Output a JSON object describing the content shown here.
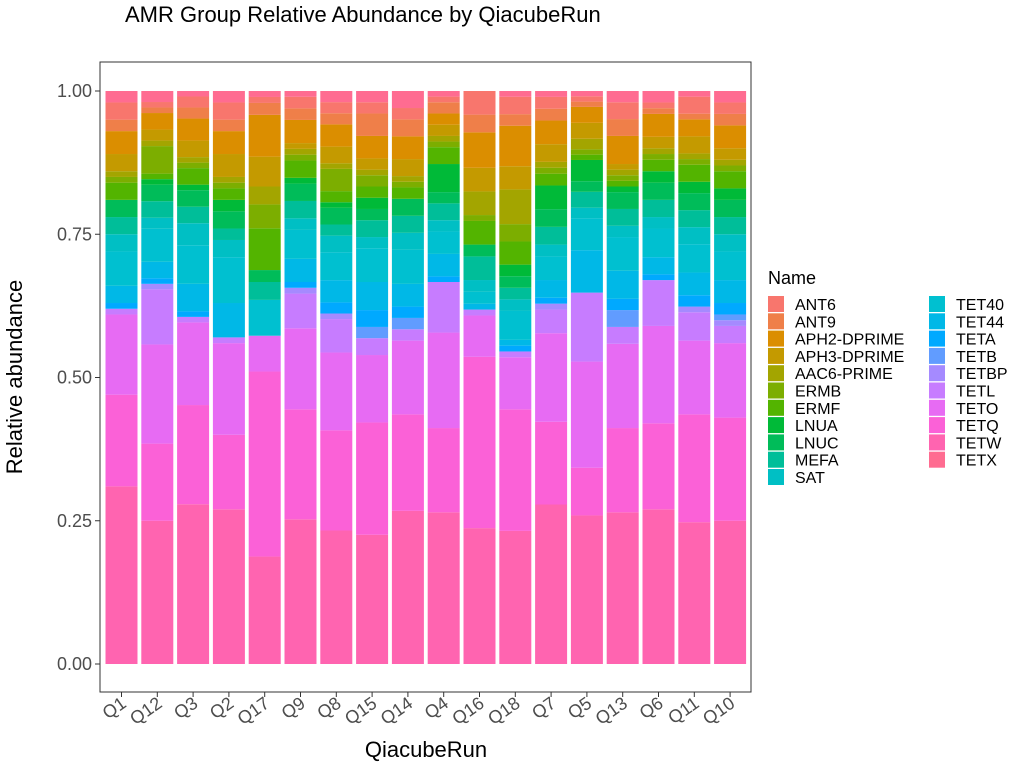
{
  "chart_data": {
    "type": "bar",
    "stacked": true,
    "normalized": true,
    "title": "AMR Group Relative Abundance by QiacubeRun",
    "xlabel": "QiacubeRun",
    "ylabel": "Relative abundance",
    "ylim": [
      0,
      1
    ],
    "yticks": [
      "0.00",
      "0.25",
      "0.50",
      "0.75",
      "1.00"
    ],
    "categories": [
      "Q1",
      "Q12",
      "Q3",
      "Q2",
      "Q17",
      "Q9",
      "Q8",
      "Q15",
      "Q14",
      "Q4",
      "Q16",
      "Q18",
      "Q7",
      "Q5",
      "Q13",
      "Q6",
      "Q11",
      "Q10"
    ],
    "legend_title": "Name",
    "legend_position": "right",
    "grid": false,
    "series": [
      {
        "name": "TETW",
        "color": "#FF64B0",
        "values": [
          0.31,
          0.26,
          0.29,
          0.27,
          0.18,
          0.25,
          0.24,
          0.23,
          0.27,
          0.27,
          0.23,
          0.23,
          0.27,
          0.28,
          0.27,
          0.27,
          0.25,
          0.25
        ]
      },
      {
        "name": "TETQ",
        "color": "#FB61D7",
        "values": [
          0.16,
          0.14,
          0.18,
          0.13,
          0.31,
          0.19,
          0.18,
          0.2,
          0.17,
          0.15,
          0.29,
          0.21,
          0.14,
          0.09,
          0.15,
          0.15,
          0.19,
          0.18
        ]
      },
      {
        "name": "TETO",
        "color": "#E76BF3",
        "values": [
          0.14,
          0.18,
          0.15,
          0.16,
          0.06,
          0.14,
          0.14,
          0.12,
          0.13,
          0.17,
          0.07,
          0.09,
          0.15,
          0.2,
          0.15,
          0.17,
          0.13,
          0.13
        ]
      },
      {
        "name": "TETL",
        "color": "#C77CFF",
        "values": [
          0.01,
          0.1,
          0.01,
          0.01,
          0.0,
          0.06,
          0.06,
          0.03,
          0.02,
          0.09,
          0.01,
          0.01,
          0.04,
          0.13,
          0.03,
          0.08,
          0.05,
          0.03
        ]
      },
      {
        "name": "TETBP",
        "color": "#A58AFF",
        "values": [
          0.0,
          0.01,
          0.0,
          0.0,
          0.0,
          0.01,
          0.01,
          0.0,
          0.0,
          0.0,
          0.0,
          0.0,
          0.01,
          0.0,
          0.0,
          0.0,
          0.01,
          0.01
        ]
      },
      {
        "name": "TETB",
        "color": "#619CFF",
        "values": [
          0.0,
          0.0,
          0.0,
          0.0,
          0.0,
          0.0,
          0.0,
          0.02,
          0.02,
          0.0,
          0.0,
          0.0,
          0.0,
          0.0,
          0.03,
          0.0,
          0.0,
          0.01
        ]
      },
      {
        "name": "TETA",
        "color": "#00A9FF",
        "values": [
          0.01,
          0.01,
          0.01,
          0.0,
          0.0,
          0.01,
          0.02,
          0.03,
          0.02,
          0.01,
          0.0,
          0.01,
          0.01,
          0.0,
          0.02,
          0.01,
          0.02,
          0.02
        ]
      },
      {
        "name": "TET44",
        "color": "#00B8E7",
        "values": [
          0.03,
          0.03,
          0.05,
          0.06,
          0.0,
          0.04,
          0.04,
          0.05,
          0.04,
          0.04,
          0.01,
          0.01,
          0.03,
          0.08,
          0.05,
          0.03,
          0.04,
          0.04
        ]
      },
      {
        "name": "TET40",
        "color": "#00C0D0",
        "values": [
          0.06,
          0.06,
          0.07,
          0.08,
          0.06,
          0.05,
          0.05,
          0.06,
          0.06,
          0.04,
          0.02,
          0.05,
          0.04,
          0.06,
          0.06,
          0.05,
          0.05,
          0.05
        ]
      },
      {
        "name": "SAT",
        "color": "#00BFC4",
        "values": [
          0.03,
          0.02,
          0.04,
          0.03,
          0.0,
          0.02,
          0.03,
          0.02,
          0.03,
          0.02,
          0.02,
          0.02,
          0.02,
          0.02,
          0.02,
          0.02,
          0.03,
          0.03
        ]
      },
      {
        "name": "MEFA",
        "color": "#00BE99",
        "values": [
          0.03,
          0.03,
          0.03,
          0.02,
          0.03,
          0.03,
          0.02,
          0.03,
          0.03,
          0.03,
          0.04,
          0.02,
          0.03,
          0.03,
          0.03,
          0.03,
          0.03,
          0.03
        ]
      },
      {
        "name": "LNUC",
        "color": "#00BC59",
        "values": [
          0.03,
          0.03,
          0.03,
          0.03,
          0.02,
          0.03,
          0.03,
          0.02,
          0.03,
          0.02,
          0.02,
          0.02,
          0.03,
          0.02,
          0.03,
          0.03,
          0.03,
          0.03
        ]
      },
      {
        "name": "LNUA",
        "color": "#00BA38",
        "values": [
          0.0,
          0.01,
          0.01,
          0.02,
          0.0,
          0.01,
          0.01,
          0.02,
          0.0,
          0.05,
          0.0,
          0.02,
          0.04,
          0.04,
          0.01,
          0.02,
          0.02,
          0.02
        ]
      },
      {
        "name": "ERMF",
        "color": "#53B400",
        "values": [
          0.03,
          0.01,
          0.03,
          0.02,
          0.07,
          0.03,
          0.02,
          0.02,
          0.02,
          0.03,
          0.04,
          0.04,
          0.02,
          0.01,
          0.01,
          0.02,
          0.03,
          0.03
        ]
      },
      {
        "name": "ERMB",
        "color": "#7CAE00",
        "values": [
          0.01,
          0.05,
          0.01,
          0.01,
          0.04,
          0.01,
          0.04,
          0.02,
          0.01,
          0.01,
          0.01,
          0.03,
          0.01,
          0.01,
          0.01,
          0.01,
          0.01,
          0.01
        ]
      },
      {
        "name": "AAC6-PRIME",
        "color": "#A3A500",
        "values": [
          0.01,
          0.01,
          0.01,
          0.01,
          0.03,
          0.01,
          0.01,
          0.01,
          0.01,
          0.01,
          0.04,
          0.06,
          0.01,
          0.02,
          0.01,
          0.01,
          0.01,
          0.01
        ]
      },
      {
        "name": "APH3-DPRIME",
        "color": "#C49A00",
        "values": [
          0.03,
          0.02,
          0.03,
          0.04,
          0.05,
          0.01,
          0.03,
          0.02,
          0.03,
          0.02,
          0.04,
          0.04,
          0.03,
          0.03,
          0.01,
          0.02,
          0.03,
          0.02
        ]
      },
      {
        "name": "APH2-DPRIME",
        "color": "#DB8E00",
        "values": [
          0.04,
          0.03,
          0.04,
          0.04,
          0.07,
          0.04,
          0.04,
          0.04,
          0.04,
          0.02,
          0.06,
          0.07,
          0.04,
          0.03,
          0.05,
          0.04,
          0.03,
          0.04
        ]
      },
      {
        "name": "ANT9",
        "color": "#EF7F49",
        "values": [
          0.02,
          0.01,
          0.02,
          0.02,
          0.02,
          0.02,
          0.02,
          0.04,
          0.03,
          0.02,
          0.03,
          0.02,
          0.02,
          0.01,
          0.03,
          0.01,
          0.01,
          0.02
        ]
      },
      {
        "name": "ANT6",
        "color": "#F8766D",
        "values": [
          0.03,
          0.01,
          0.02,
          0.03,
          0.01,
          0.02,
          0.02,
          0.02,
          0.02,
          0.01,
          0.04,
          0.03,
          0.02,
          0.01,
          0.03,
          0.01,
          0.03,
          0.02
        ]
      },
      {
        "name": "TETX",
        "color": "#FF6C91",
        "values": [
          0.02,
          0.02,
          0.01,
          0.02,
          0.01,
          0.01,
          0.02,
          0.02,
          0.03,
          0.01,
          0.0,
          0.01,
          0.01,
          0.01,
          0.02,
          0.02,
          0.01,
          0.02
        ]
      }
    ],
    "legend_order": [
      "ANT6",
      "ANT9",
      "APH2-DPRIME",
      "APH3-DPRIME",
      "AAC6-PRIME",
      "ERMB",
      "ERMF",
      "LNUA",
      "LNUC",
      "MEFA",
      "SAT",
      "TET40",
      "TET44",
      "TETA",
      "TETB",
      "TETBP",
      "TETL",
      "TETO",
      "TETQ",
      "TETW",
      "TETX"
    ]
  }
}
